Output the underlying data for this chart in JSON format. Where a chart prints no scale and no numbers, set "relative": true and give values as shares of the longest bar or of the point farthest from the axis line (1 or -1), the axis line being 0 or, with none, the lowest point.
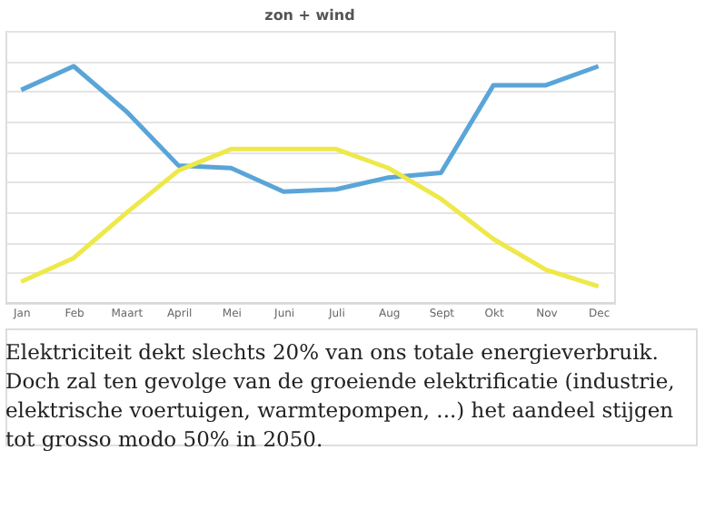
{
  "chart_data": {
    "type": "line",
    "title": "zon + wind",
    "relative": true,
    "grid": "y",
    "marker": "none",
    "line_style": "solid",
    "categories": [
      "Jan",
      "Feb",
      "Maart",
      "April",
      "Mei",
      "Juni",
      "Juli",
      "Aug",
      "Sept",
      "Okt",
      "Nov",
      "Dec"
    ],
    "series": [
      {
        "color": "#5aa5d8",
        "values": [
          0.9,
          1,
          0.81,
          0.58,
          0.57,
          0.47,
          0.48,
          0.53,
          0.55,
          0.92,
          0.92,
          1
        ]
      },
      {
        "color": "#eee84a",
        "values": [
          0.09,
          0.19,
          0.38,
          0.56,
          0.65,
          0.65,
          0.65,
          0.57,
          0.44,
          0.27,
          0.14,
          0.07
        ]
      }
    ],
    "annotations": [
      "Elektriciteit dekt slechts 20% van ons totale energieverbruik. Doch zal ten gevolge van de groeiende elektrificatie (industrie, elektrische voertuigen, warmtepompen, ...) het aandeel stijgen tot grosso modo 50% in 2050."
    ]
  }
}
